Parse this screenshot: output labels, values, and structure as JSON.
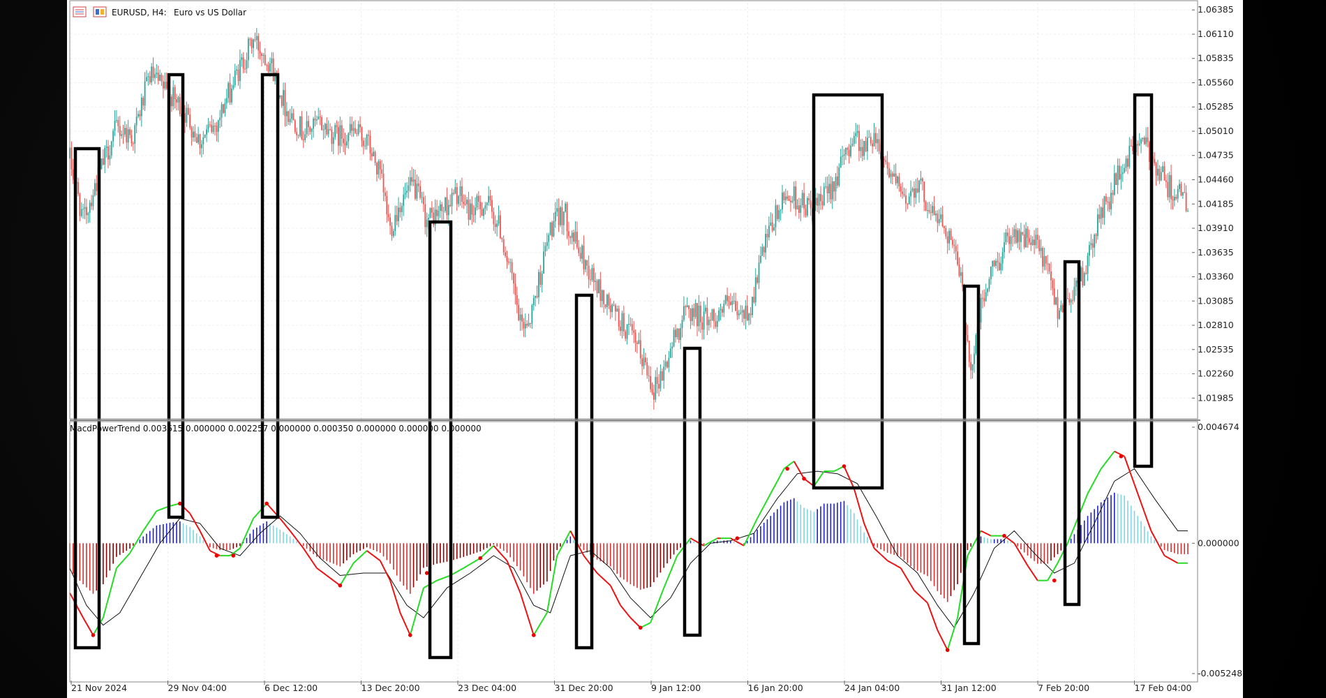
{
  "header": {
    "symbol": "EURUSD, H4:",
    "description": "Euro vs US Dollar"
  },
  "indicator": {
    "label": "MacdPowerTrend 0.003615 0.000000 0.002257 0.000000 0.000350 0.000000 0.000000 0.000000"
  },
  "colors": {
    "bull": "#26a69a",
    "bear": "#ef5350",
    "hist_pos_strong": "#1f22c9",
    "hist_pos_weak": "#7fd6e0",
    "hist_neg_strong": "#8b0000",
    "hist_neg_weak": "#d93030",
    "macd_up": "#22dd22",
    "macd_down": "#ee1111",
    "signal": "#111111",
    "box": "#000000"
  },
  "chart_data": [
    {
      "type": "candlestick",
      "symbol": "EURUSD",
      "timeframe": "H4",
      "y_ticks": [
        "1.06385",
        "1.06110",
        "1.05835",
        "1.05560",
        "1.05285",
        "1.05010",
        "1.04735",
        "1.04460",
        "1.04185",
        "1.03910",
        "1.03635",
        "1.03360",
        "1.03085",
        "1.02810",
        "1.02535",
        "1.02260",
        "1.01985"
      ],
      "ylim": [
        1.0175,
        1.0645
      ],
      "x_ticks": [
        "21 Nov 2024",
        "29 Nov 04:00",
        "6 Dec 12:00",
        "13 Dec 20:00",
        "23 Dec 04:00",
        "31 Dec 20:00",
        "9 Jan 12:00",
        "16 Jan 20:00",
        "24 Jan 04:00",
        "31 Jan 12:00",
        "7 Feb 20:00",
        "17 Feb 04:00"
      ],
      "close_path": [
        [
          0,
          1.047
        ],
        [
          8,
          1.04
        ],
        [
          18,
          1.0455
        ],
        [
          28,
          1.0505
        ],
        [
          38,
          1.0495
        ],
        [
          48,
          1.0565
        ],
        [
          58,
          1.0545
        ],
        [
          68,
          1.0525
        ],
        [
          78,
          1.049
        ],
        [
          88,
          1.051
        ],
        [
          100,
          1.0565
        ],
        [
          110,
          1.0605
        ],
        [
          120,
          1.058
        ],
        [
          130,
          1.0525
        ],
        [
          140,
          1.05
        ],
        [
          150,
          1.051
        ],
        [
          160,
          1.0495
        ],
        [
          170,
          1.05
        ],
        [
          178,
          1.049
        ],
        [
          186,
          1.045
        ],
        [
          192,
          1.039
        ],
        [
          198,
          1.042
        ],
        [
          206,
          1.044
        ],
        [
          214,
          1.04
        ],
        [
          222,
          1.041
        ],
        [
          232,
          1.043
        ],
        [
          240,
          1.041
        ],
        [
          250,
          1.042
        ],
        [
          258,
          1.039
        ],
        [
          264,
          1.034
        ],
        [
          270,
          1.028
        ],
        [
          276,
          1.029
        ],
        [
          282,
          1.034
        ],
        [
          288,
          1.039
        ],
        [
          296,
          1.041
        ],
        [
          304,
          1.037
        ],
        [
          312,
          1.034
        ],
        [
          320,
          1.031
        ],
        [
          328,
          1.029
        ],
        [
          336,
          1.027
        ],
        [
          344,
          1.024
        ],
        [
          350,
          1.021
        ],
        [
          356,
          1.023
        ],
        [
          362,
          1.0265
        ],
        [
          370,
          1.03
        ],
        [
          378,
          1.029
        ],
        [
          386,
          1.029
        ],
        [
          394,
          1.0305
        ],
        [
          402,
          1.029
        ],
        [
          408,
          1.03
        ],
        [
          414,
          1.0355
        ],
        [
          422,
          1.04
        ],
        [
          430,
          1.043
        ],
        [
          438,
          1.042
        ],
        [
          446,
          1.041
        ],
        [
          454,
          1.043
        ],
        [
          462,
          1.046
        ],
        [
          470,
          1.05
        ],
        [
          476,
          1.048
        ],
        [
          482,
          1.05
        ],
        [
          488,
          1.047
        ],
        [
          494,
          1.0445
        ],
        [
          500,
          1.042
        ],
        [
          508,
          1.0445
        ],
        [
          516,
          1.041
        ],
        [
          522,
          1.04
        ],
        [
          528,
          1.038
        ],
        [
          534,
          1.033
        ],
        [
          540,
          1.023
        ],
        [
          546,
          1.03
        ],
        [
          552,
          1.034
        ],
        [
          558,
          1.036
        ],
        [
          564,
          1.039
        ],
        [
          572,
          1.038
        ],
        [
          580,
          1.037
        ],
        [
          586,
          1.034
        ],
        [
          592,
          1.03
        ],
        [
          598,
          1.031
        ],
        [
          604,
          1.033
        ],
        [
          610,
          1.035
        ],
        [
          616,
          1.04
        ],
        [
          622,
          1.042
        ],
        [
          628,
          1.045
        ],
        [
          634,
          1.047
        ],
        [
          640,
          1.049
        ],
        [
          646,
          1.048
        ],
        [
          652,
          1.046
        ],
        [
          658,
          1.044
        ],
        [
          664,
          1.043
        ],
        [
          670,
          1.042
        ]
      ]
    },
    {
      "type": "macd_histogram",
      "name": "MacdPowerTrend",
      "y_ticks": [
        "0.004674",
        "0.000000",
        "-0.005248"
      ],
      "ylim": [
        -0.005248,
        0.004674
      ],
      "macd_path": [
        [
          0,
          -0.002
        ],
        [
          8,
          -0.003
        ],
        [
          14,
          -0.0037
        ],
        [
          20,
          -0.003
        ],
        [
          28,
          -0.001
        ],
        [
          36,
          -0.0004
        ],
        [
          44,
          0.0005
        ],
        [
          52,
          0.0013
        ],
        [
          60,
          0.0015
        ],
        [
          66,
          0.0016
        ],
        [
          72,
          0.0012
        ],
        [
          78,
          0.0005
        ],
        [
          84,
          -0.0003
        ],
        [
          90,
          -0.0005
        ],
        [
          96,
          -0.0005
        ],
        [
          102,
          -0.0002
        ],
        [
          110,
          0.001
        ],
        [
          118,
          0.0016
        ],
        [
          126,
          0.001
        ],
        [
          132,
          0.0005
        ],
        [
          140,
          -0.0002
        ],
        [
          148,
          -0.001
        ],
        [
          156,
          -0.0014
        ],
        [
          162,
          -0.0017
        ],
        [
          170,
          -0.0008
        ],
        [
          178,
          -0.0003
        ],
        [
          186,
          -0.0007
        ],
        [
          192,
          -0.0015
        ],
        [
          198,
          -0.0028
        ],
        [
          204,
          -0.0037
        ],
        [
          212,
          -0.0018
        ],
        [
          220,
          -0.0015
        ],
        [
          228,
          -0.0013
        ],
        [
          236,
          -0.001
        ],
        [
          246,
          -0.0006
        ],
        [
          254,
          -0.0001
        ],
        [
          262,
          -0.0007
        ],
        [
          270,
          -0.002
        ],
        [
          278,
          -0.0037
        ],
        [
          286,
          -0.0028
        ],
        [
          292,
          -0.0005
        ],
        [
          300,
          0.0005
        ],
        [
          308,
          -0.0005
        ],
        [
          316,
          -0.0012
        ],
        [
          324,
          -0.0017
        ],
        [
          330,
          -0.0025
        ],
        [
          336,
          -0.003
        ],
        [
          342,
          -0.0034
        ],
        [
          348,
          -0.0032
        ],
        [
          356,
          -0.0018
        ],
        [
          364,
          -0.0005
        ],
        [
          372,
          0.0002
        ],
        [
          380,
          -0.0001
        ],
        [
          388,
          0.0002
        ],
        [
          396,
          0.0002
        ],
        [
          404,
          -0.0001
        ],
        [
          412,
          0.001
        ],
        [
          420,
          0.002
        ],
        [
          428,
          0.003
        ],
        [
          434,
          0.0033
        ],
        [
          440,
          0.0026
        ],
        [
          446,
          0.0023
        ],
        [
          452,
          0.0029
        ],
        [
          458,
          0.0029
        ],
        [
          464,
          0.0031
        ],
        [
          470,
          0.0022
        ],
        [
          476,
          0.0008
        ],
        [
          482,
          -0.0002
        ],
        [
          490,
          -0.0007
        ],
        [
          498,
          -0.001
        ],
        [
          506,
          -0.0019
        ],
        [
          514,
          -0.0024
        ],
        [
          520,
          -0.0035
        ],
        [
          526,
          -0.0043
        ],
        [
          532,
          -0.003
        ],
        [
          538,
          -0.0005
        ],
        [
          546,
          0.0005
        ],
        [
          552,
          0.0003
        ],
        [
          560,
          0.0003
        ],
        [
          566,
          0.0
        ],
        [
          574,
          -0.0009
        ],
        [
          580,
          -0.0015
        ],
        [
          586,
          -0.0015
        ],
        [
          592,
          -0.0008
        ],
        [
          598,
          0.0
        ],
        [
          604,
          0.001
        ],
        [
          610,
          0.002
        ],
        [
          618,
          0.003
        ],
        [
          626,
          0.0037
        ],
        [
          632,
          0.0035
        ],
        [
          640,
          0.002
        ],
        [
          648,
          0.0005
        ],
        [
          656,
          -0.0005
        ],
        [
          664,
          -0.0008
        ]
      ],
      "signal_path": [
        [
          0,
          -0.001
        ],
        [
          10,
          -0.0025
        ],
        [
          20,
          -0.0033
        ],
        [
          30,
          -0.0028
        ],
        [
          42,
          -0.0014
        ],
        [
          54,
          0.0
        ],
        [
          66,
          0.001
        ],
        [
          78,
          0.0008
        ],
        [
          90,
          -0.0002
        ],
        [
          102,
          -0.0005
        ],
        [
          114,
          0.0004
        ],
        [
          126,
          0.0011
        ],
        [
          138,
          0.0004
        ],
        [
          150,
          -0.0006
        ],
        [
          162,
          -0.0013
        ],
        [
          176,
          -0.0012
        ],
        [
          190,
          -0.0012
        ],
        [
          202,
          -0.0025
        ],
        [
          212,
          -0.003
        ],
        [
          226,
          -0.0018
        ],
        [
          240,
          -0.0012
        ],
        [
          254,
          -0.0005
        ],
        [
          266,
          -0.001
        ],
        [
          278,
          -0.0025
        ],
        [
          288,
          -0.0028
        ],
        [
          300,
          -0.0005
        ],
        [
          312,
          -0.0003
        ],
        [
          324,
          -0.001
        ],
        [
          336,
          -0.0022
        ],
        [
          348,
          -0.003
        ],
        [
          360,
          -0.0022
        ],
        [
          372,
          -0.0008
        ],
        [
          384,
          0.0
        ],
        [
          396,
          0.0001
        ],
        [
          410,
          0.0004
        ],
        [
          424,
          0.0018
        ],
        [
          436,
          0.0028
        ],
        [
          448,
          0.0029
        ],
        [
          460,
          0.0028
        ],
        [
          472,
          0.0024
        ],
        [
          484,
          0.001
        ],
        [
          496,
          -0.0005
        ],
        [
          508,
          -0.0012
        ],
        [
          520,
          -0.0025
        ],
        [
          530,
          -0.0034
        ],
        [
          542,
          -0.002
        ],
        [
          554,
          -0.0002
        ],
        [
          566,
          0.0005
        ],
        [
          578,
          -0.0004
        ],
        [
          590,
          -0.0012
        ],
        [
          602,
          -0.0008
        ],
        [
          614,
          0.0008
        ],
        [
          626,
          0.0025
        ],
        [
          638,
          0.003
        ],
        [
          650,
          0.0018
        ],
        [
          664,
          0.0005
        ]
      ]
    }
  ]
}
